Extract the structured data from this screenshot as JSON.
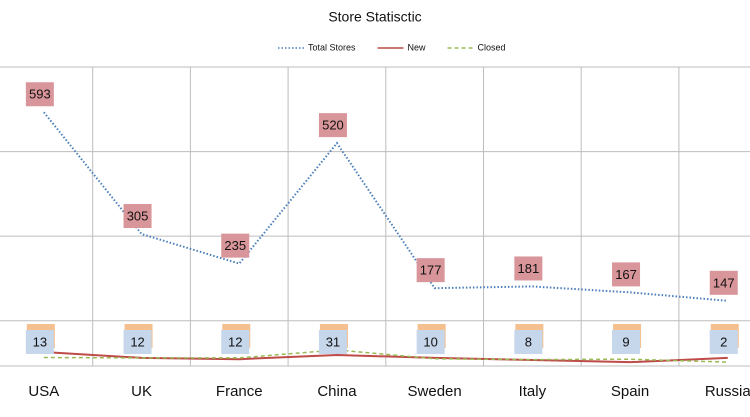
{
  "chart_data": {
    "type": "line",
    "title": "Store Statisctic",
    "categories": [
      "USA",
      "UK",
      "France",
      "China",
      "Sweden",
      "Italy",
      "Spain",
      "Russia"
    ],
    "series": [
      {
        "name": "Total Stores",
        "color": "#4a7ebb",
        "values": [
          593,
          305,
          235,
          520,
          177,
          181,
          167,
          147
        ]
      },
      {
        "name": "New",
        "color": "#be4b48",
        "values": [
          26,
          12,
          9,
          19,
          12,
          7,
          2,
          12
        ]
      },
      {
        "name": "Closed",
        "color": "#98b954",
        "values": [
          13,
          12,
          12,
          31,
          10,
          8,
          9,
          2
        ]
      }
    ],
    "ylim": [
      0,
      700
    ],
    "yticks": [
      100,
      300,
      500,
      700
    ],
    "grid": true
  }
}
